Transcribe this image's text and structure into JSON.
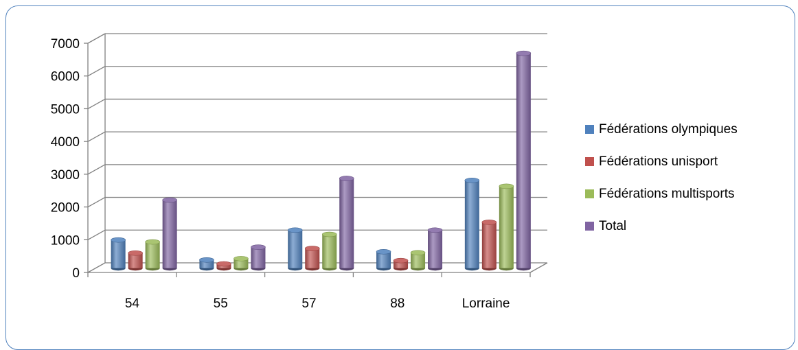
{
  "chart_data": {
    "type": "bar",
    "title": "",
    "xlabel": "",
    "ylabel": "",
    "categories": [
      "54",
      "55",
      "57",
      "88",
      "Lorraine"
    ],
    "ylim": [
      0,
      7000
    ],
    "yticks": [
      "0",
      "1000",
      "2000",
      "3000",
      "4000",
      "5000",
      "6000",
      "7000"
    ],
    "grid": true,
    "legend_position": "right",
    "series": [
      {
        "name": "Fédérations olympiques",
        "color": "#4f81bd",
        "values": [
          860,
          250,
          1160,
          500,
          2680
        ]
      },
      {
        "name": "Fédérations unisport",
        "color": "#c0504d",
        "values": [
          460,
          130,
          600,
          230,
          1400
        ]
      },
      {
        "name": "Fédérations multisports",
        "color": "#9bbb59",
        "values": [
          800,
          290,
          1030,
          470,
          2500
        ]
      },
      {
        "name": "Total",
        "color": "#8064a2",
        "values": [
          2080,
          640,
          2740,
          1160,
          6560
        ]
      }
    ]
  }
}
